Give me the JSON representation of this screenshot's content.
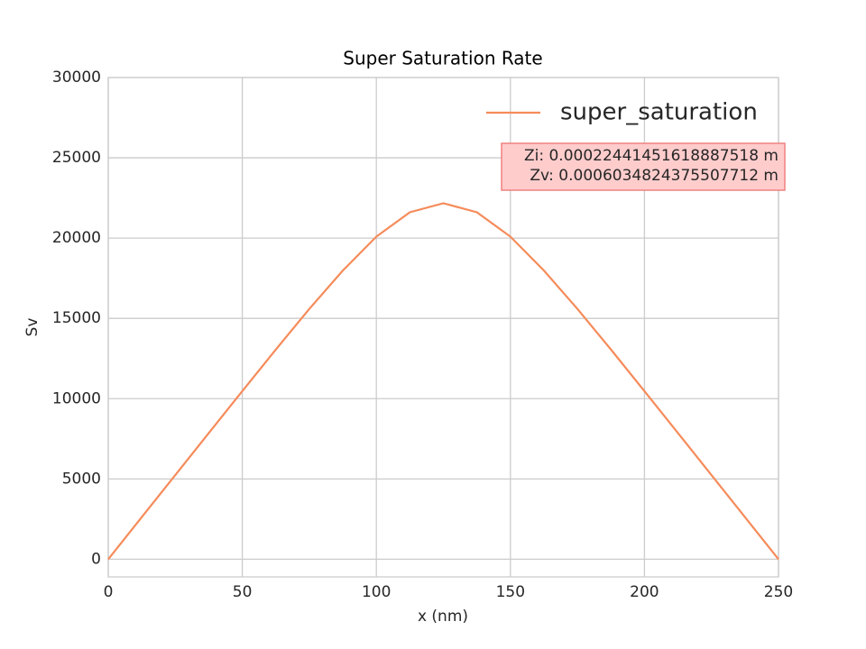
{
  "chart_data": {
    "type": "line",
    "title": "Super Saturation Rate",
    "x_label": "x (nm)",
    "y_label": "Sv",
    "x": [
      0,
      12.5,
      25,
      37.5,
      50,
      62.5,
      75,
      87.5,
      100,
      112.5,
      125,
      137.5,
      150,
      162.5,
      175,
      187.5,
      200,
      212.5,
      225,
      237.5,
      250
    ],
    "series": [
      {
        "name": "super_saturation",
        "color": "#f58b5a",
        "values": [
          0,
          2620,
          5240,
          7860,
          10470,
          13060,
          15590,
          17980,
          20090,
          21610,
          22170,
          21610,
          20090,
          17980,
          15590,
          13060,
          10470,
          7860,
          5240,
          2620,
          0
        ]
      }
    ],
    "xlim": [
      0,
      250
    ],
    "xticks": [
      0,
      50,
      100,
      150,
      200,
      250
    ],
    "ylim": [
      -1100,
      30000
    ],
    "yticks": [
      0,
      5000,
      10000,
      15000,
      20000,
      25000,
      30000
    ],
    "grid": true,
    "legend": "upper right",
    "annotation": [
      "Zi: 0.00022441451618887518 m",
      "Zv: 0.0006034824375507712 m"
    ]
  }
}
